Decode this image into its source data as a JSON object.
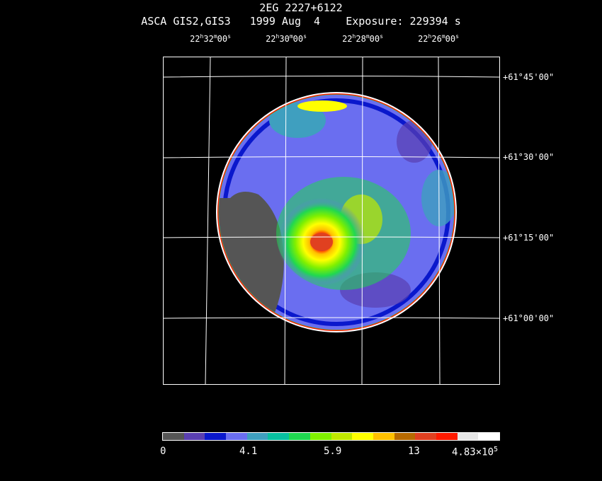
{
  "header": {
    "title": "2EG 2227+6122",
    "subtitle": "ASCA GIS2,GIS3   1999 Aug  4    Exposure: 229394 s"
  },
  "ra_ticks": [
    {
      "h": "22",
      "m": "32",
      "s": "00"
    },
    {
      "h": "22",
      "m": "30",
      "s": "00"
    },
    {
      "h": "22",
      "m": "28",
      "s": "00"
    },
    {
      "h": "22",
      "m": "26",
      "s": "00"
    }
  ],
  "dec_ticks": [
    "+61°45'00\"",
    "+61°30'00\"",
    "+61°15'00\"",
    "+61°00'00\""
  ],
  "colorbar": {
    "colors": [
      "#555555",
      "#5a3fb0",
      "#0a18cc",
      "#6a6ef0",
      "#3f9fbf",
      "#08c0a0",
      "#20d850",
      "#80f000",
      "#c0e800",
      "#ffff00",
      "#ffc000",
      "#b86a00",
      "#e04020",
      "#ff1a00",
      "#e6e6e6",
      "#ffffff"
    ],
    "labels": [
      "0",
      "4.1",
      "5.9",
      "13",
      "4.83×10"
    ],
    "last_exp": "5"
  },
  "image": {
    "background": "#555555",
    "disk": "#6a6ef0",
    "rim_colors": [
      "#ffffff",
      "#ff1a00",
      "#ffc000"
    ],
    "source_core": "#e04020",
    "source_mid": "#ffff00",
    "source_outer": "#80f000"
  }
}
